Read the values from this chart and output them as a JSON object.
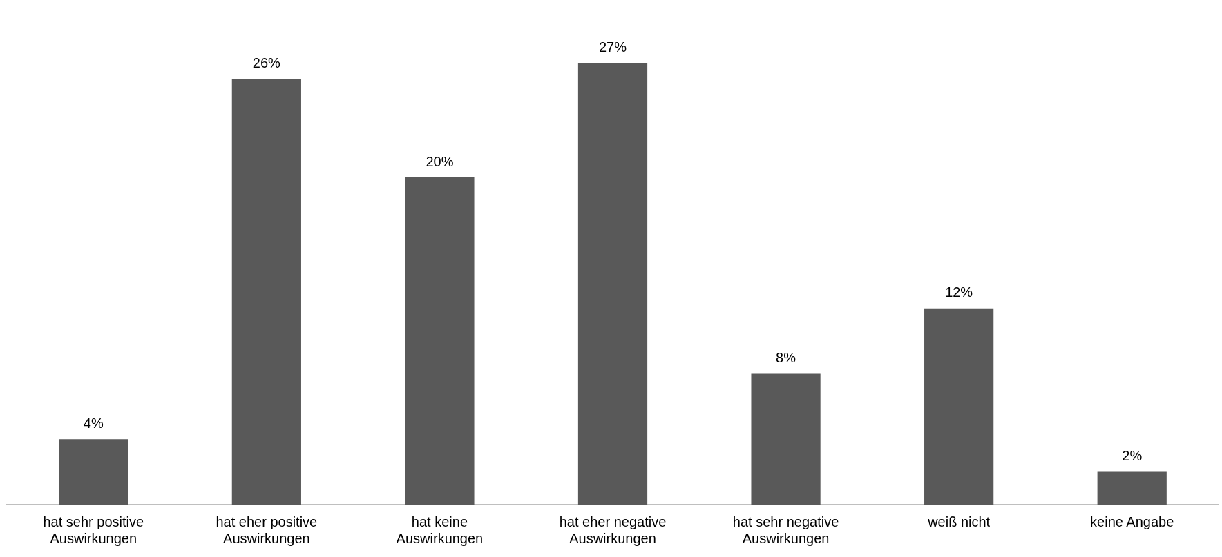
{
  "chart_data": {
    "type": "bar",
    "categories": [
      "hat sehr positive Auswirkungen",
      "hat eher positive Auswirkungen",
      "hat keine Auswirkungen",
      "hat eher negative Auswirkungen",
      "hat sehr negative Auswirkungen",
      "weiß nicht",
      "keine Angabe"
    ],
    "values": [
      4,
      26,
      20,
      27,
      8,
      12,
      2
    ],
    "value_labels": [
      "4%",
      "26%",
      "20%",
      "27%",
      "8%",
      "12%",
      "2%"
    ],
    "color": "#595959",
    "grid": false,
    "legend": false,
    "tick_labels": "x"
  }
}
